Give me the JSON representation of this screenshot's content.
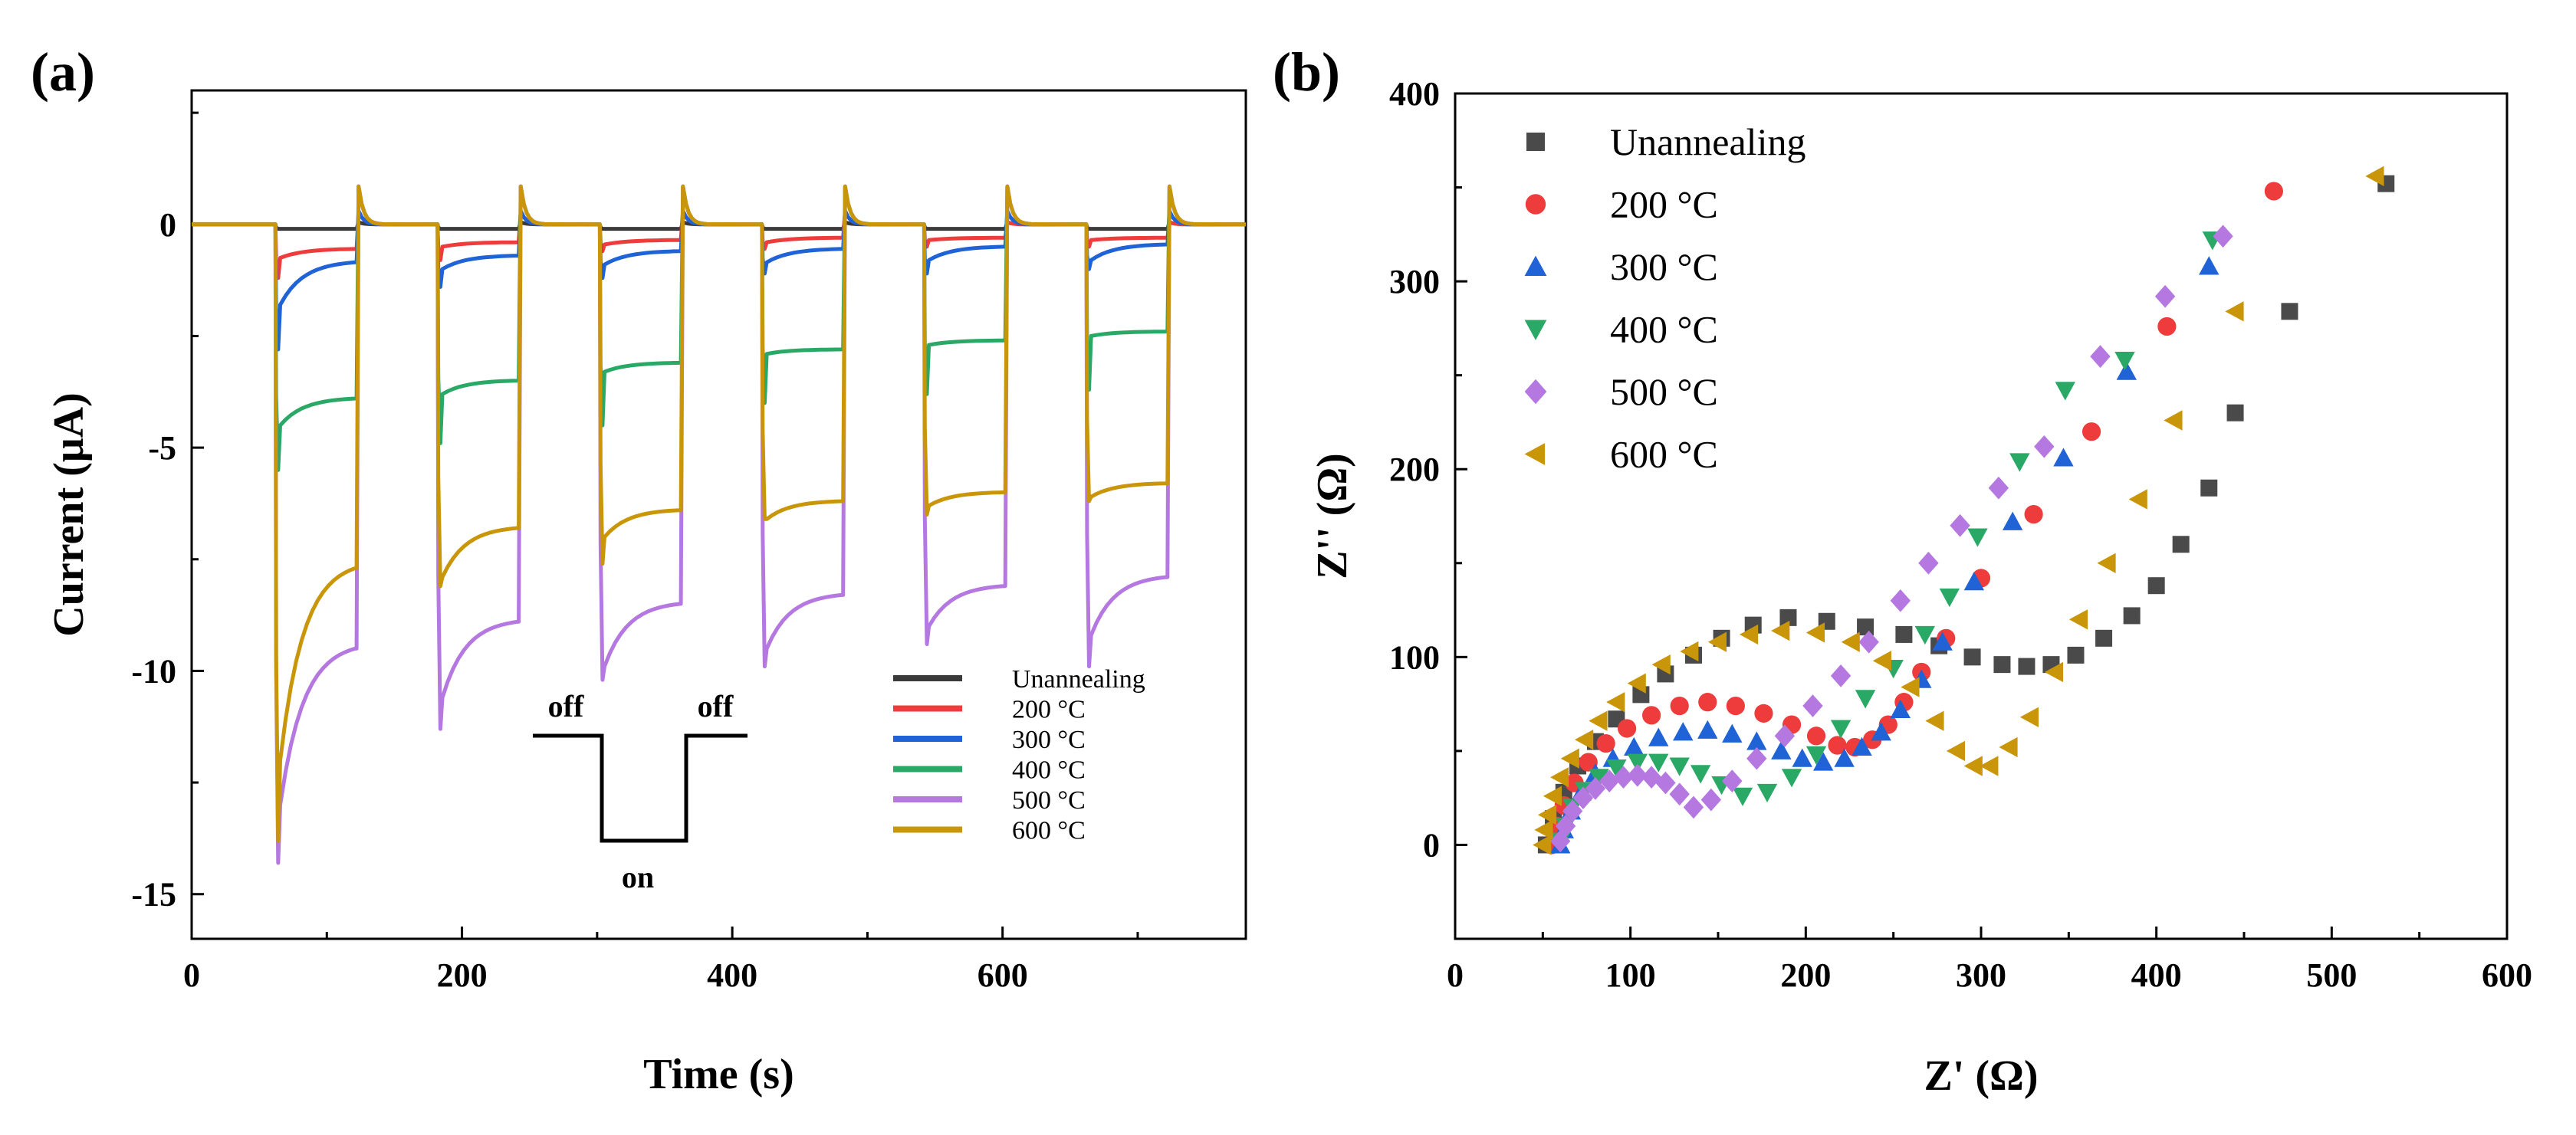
{
  "chart_data": [
    {
      "type": "line",
      "panel_label": "(a)",
      "xlabel": "Time (s)",
      "ylabel": "Current (μA)",
      "xlim": [
        0,
        780
      ],
      "ylim": [
        -16,
        3
      ],
      "xticks": [
        0,
        200,
        400,
        600
      ],
      "yticks": [
        0,
        -5,
        -10,
        -15
      ],
      "legend_position": "bottom-right",
      "light_on_periods": [
        [
          62,
          122
        ],
        [
          182,
          242
        ],
        [
          302,
          362
        ],
        [
          422,
          482
        ],
        [
          542,
          602
        ],
        [
          662,
          722
        ]
      ],
      "overshoot_on_light_off": 0.85,
      "inset_annotation": {
        "off_left": "off",
        "on": "on",
        "off_right": "off"
      },
      "series": [
        {
          "name": "Unannealing",
          "color": "#3a3a3a",
          "peak": [
            -0.1,
            -0.1,
            -0.1,
            -0.1,
            -0.1,
            -0.1
          ],
          "start": [
            -0.1,
            -0.1,
            -0.1,
            -0.1,
            -0.1,
            -0.1
          ],
          "end": [
            -0.1,
            -0.1,
            -0.1,
            -0.1,
            -0.1,
            -0.1
          ]
        },
        {
          "name": "200 °C",
          "color": "#ee3b3b",
          "peak": [
            -1.2,
            -0.8,
            -0.6,
            -0.55,
            -0.5,
            -0.5
          ],
          "start": [
            -0.75,
            -0.5,
            -0.45,
            -0.4,
            -0.35,
            -0.35
          ],
          "end": [
            -0.55,
            -0.4,
            -0.35,
            -0.3,
            -0.3,
            -0.3
          ]
        },
        {
          "name": "300 °C",
          "color": "#1f63d6",
          "peak": [
            -2.8,
            -1.4,
            -1.2,
            -1.1,
            -1.1,
            -1.0
          ],
          "start": [
            -1.8,
            -1.0,
            -0.9,
            -0.85,
            -0.8,
            -0.8
          ],
          "end": [
            -0.85,
            -0.7,
            -0.6,
            -0.55,
            -0.5,
            -0.45
          ]
        },
        {
          "name": "400 °C",
          "color": "#2aa866",
          "peak": [
            -5.5,
            -4.9,
            -4.5,
            -4.0,
            -3.8,
            -3.7
          ],
          "start": [
            -4.5,
            -3.8,
            -3.3,
            -2.9,
            -2.7,
            -2.5
          ],
          "end": [
            -3.9,
            -3.5,
            -3.1,
            -2.8,
            -2.6,
            -2.4
          ]
        },
        {
          "name": "500 °C",
          "color": "#b478e0",
          "peak": [
            -14.3,
            -11.3,
            -10.2,
            -9.9,
            -9.4,
            -9.9
          ],
          "start": [
            -13.0,
            -10.6,
            -9.9,
            -9.5,
            -9.0,
            -9.2
          ],
          "end": [
            -9.5,
            -8.9,
            -8.5,
            -8.3,
            -8.1,
            -7.9
          ]
        },
        {
          "name": "600 °C",
          "color": "#c9960a",
          "peak": [
            -13.8,
            -8.1,
            -7.6,
            -6.6,
            -6.5,
            -6.2
          ],
          "start": [
            -12.0,
            -7.9,
            -7.0,
            -6.6,
            -6.3,
            -6.1
          ],
          "end": [
            -7.7,
            -6.8,
            -6.4,
            -6.2,
            -6.0,
            -5.8
          ]
        }
      ]
    },
    {
      "type": "scatter",
      "panel_label": "(b)",
      "xlabel": "Z' (Ω)",
      "ylabel": "Z'' (Ω)",
      "xlim": [
        0,
        600
      ],
      "ylim": [
        -50,
        400
      ],
      "xticks": [
        0,
        100,
        200,
        300,
        400,
        500,
        600
      ],
      "yticks": [
        0,
        100,
        200,
        300,
        400
      ],
      "legend_position": "top-left",
      "series": [
        {
          "name": "Unannealing",
          "marker": "square",
          "color": "#4a4a4a",
          "x": [
            52,
            56,
            62,
            70,
            80,
            92,
            106,
            120,
            136,
            152,
            170,
            190,
            212,
            234,
            256,
            276,
            295,
            312,
            326,
            340,
            354,
            370,
            386,
            400,
            414,
            430,
            445,
            476,
            531
          ],
          "y": [
            0,
            14,
            28,
            42,
            55,
            67,
            80,
            91,
            101,
            110,
            117,
            121,
            119,
            116,
            112,
            106,
            100,
            96,
            95,
            96,
            101,
            110,
            122,
            138,
            160,
            190,
            230,
            284,
            352
          ]
        },
        {
          "name": "200 °C",
          "marker": "circle",
          "color": "#ee3b3b",
          "x": [
            55,
            58,
            62,
            68,
            76,
            86,
            98,
            112,
            128,
            144,
            160,
            176,
            192,
            206,
            218,
            228,
            238,
            247,
            256,
            266,
            280,
            300,
            330,
            363,
            406,
            467
          ],
          "y": [
            0,
            10,
            21,
            33,
            44,
            54,
            62,
            69,
            74,
            76,
            74,
            70,
            64,
            58,
            53,
            52,
            56,
            64,
            76,
            92,
            110,
            142,
            176,
            220,
            276,
            348
          ]
        },
        {
          "name": "300 °C",
          "marker": "triangle-up",
          "color": "#1f63d6",
          "x": [
            60,
            62,
            66,
            72,
            80,
            90,
            102,
            116,
            130,
            144,
            158,
            172,
            186,
            198,
            210,
            222,
            232,
            243,
            254,
            266,
            278,
            296,
            318,
            347,
            383,
            430
          ],
          "y": [
            0,
            8,
            18,
            28,
            38,
            46,
            52,
            57,
            60,
            61,
            59,
            55,
            50,
            46,
            44,
            46,
            52,
            60,
            72,
            88,
            108,
            140,
            172,
            206,
            252,
            308
          ]
        },
        {
          "name": "400 °C",
          "marker": "triangle-down",
          "color": "#2aa866",
          "x": [
            60,
            63,
            67,
            74,
            82,
            92,
            104,
            116,
            128,
            140,
            152,
            164,
            178,
            192,
            206,
            220,
            234,
            250,
            268,
            282,
            298,
            322,
            348,
            382,
            432
          ],
          "y": [
            2,
            10,
            20,
            29,
            36,
            41,
            44,
            44,
            42,
            38,
            32,
            26,
            28,
            36,
            48,
            62,
            78,
            94,
            112,
            132,
            164,
            204,
            242,
            258,
            322
          ]
        },
        {
          "name": "500 °C",
          "marker": "diamond",
          "color": "#b478e0",
          "x": [
            60,
            63,
            67,
            73,
            80,
            88,
            96,
            104,
            112,
            120,
            128,
            136,
            146,
            158,
            172,
            188,
            204,
            220,
            236,
            254,
            270,
            288,
            310,
            336,
            368,
            405,
            438
          ],
          "y": [
            2,
            10,
            18,
            25,
            30,
            34,
            36,
            37,
            36,
            33,
            27,
            20,
            24,
            34,
            46,
            58,
            74,
            90,
            108,
            130,
            150,
            170,
            190,
            212,
            260,
            292,
            324
          ]
        },
        {
          "name": "600 °C",
          "marker": "triangle-left",
          "color": "#c9960a",
          "x": [
            50,
            51,
            53,
            56,
            60,
            66,
            74,
            82,
            92,
            104,
            118,
            134,
            150,
            168,
            186,
            206,
            226,
            244,
            260,
            274,
            286,
            296,
            305,
            316,
            328,
            342,
            356,
            372,
            390,
            410,
            445,
            525
          ],
          "y": [
            0,
            8,
            16,
            26,
            36,
            46,
            56,
            66,
            76,
            86,
            96,
            103,
            108,
            112,
            114,
            113,
            108,
            98,
            84,
            66,
            50,
            42,
            42,
            52,
            68,
            92,
            120,
            150,
            184,
            226,
            284,
            356
          ]
        }
      ]
    }
  ]
}
